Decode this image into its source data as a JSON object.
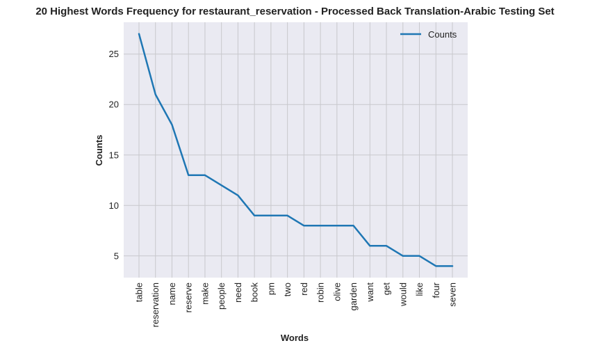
{
  "chart_data": {
    "type": "line",
    "title": "20 Highest Words Frequency for restaurant_reservation - Processed Back Translation-Arabic Testing Set",
    "xlabel": "Words",
    "ylabel": "Counts",
    "categories": [
      "table",
      "reservation",
      "name",
      "reserve",
      "make",
      "people",
      "need",
      "book",
      "pm",
      "two",
      "red",
      "robin",
      "olive",
      "garden",
      "want",
      "get",
      "would",
      "like",
      "four",
      "seven"
    ],
    "series": [
      {
        "name": "Counts",
        "values": [
          27,
          21,
          18,
          13,
          13,
          12,
          11,
          9,
          9,
          9,
          8,
          8,
          8,
          8,
          6,
          6,
          5,
          5,
          4,
          4
        ],
        "color": "#1f77b4"
      }
    ],
    "ylim": [
      2.85,
      28.15
    ],
    "yticks": [
      5,
      10,
      15,
      20,
      25
    ],
    "grid": true,
    "legend_position": "upper-right",
    "background_color": "#eaeaf2",
    "grid_color": "#c8c8cc"
  }
}
